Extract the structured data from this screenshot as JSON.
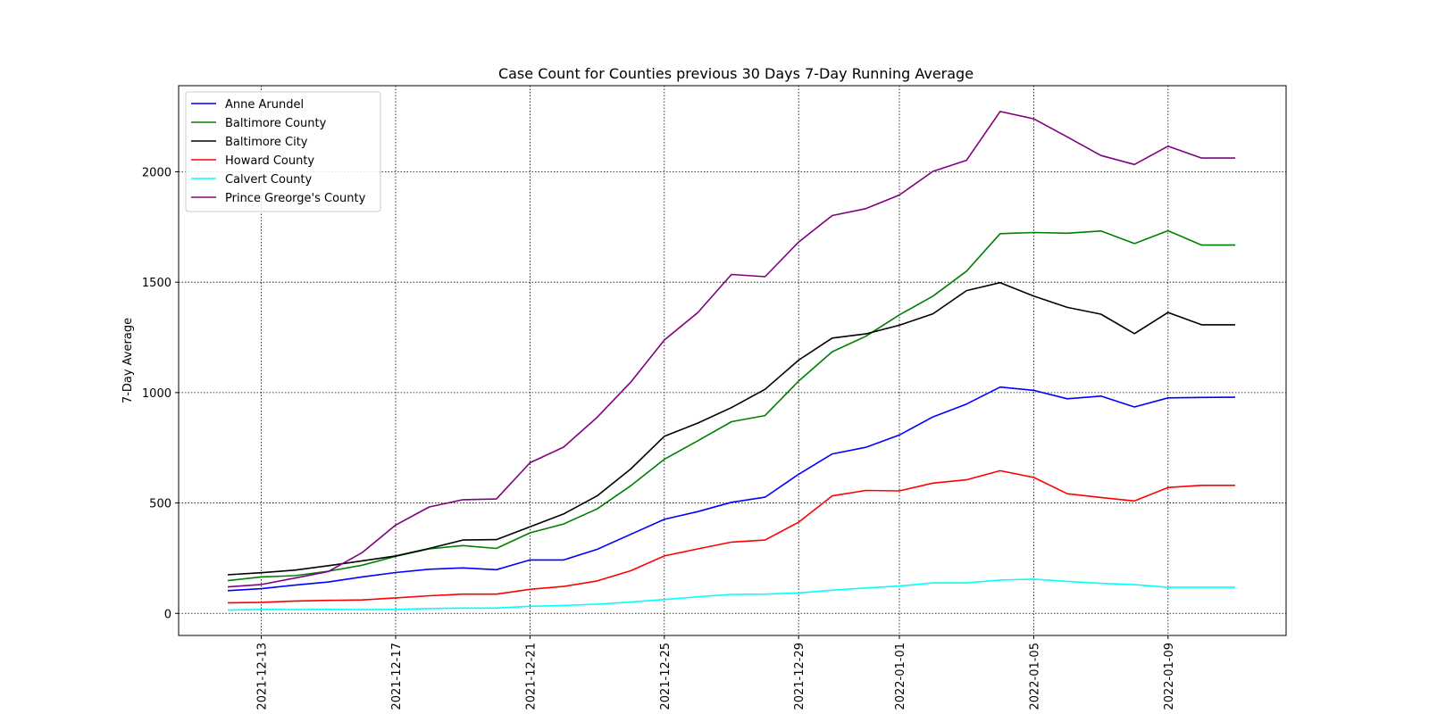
{
  "chart_data": {
    "type": "line",
    "title": "Case Count for Counties previous 30 Days 7-Day Running Average",
    "xlabel": "",
    "ylabel": "7-Day Average",
    "grid": true,
    "legend_position": "top-left",
    "ylim": [
      -100,
      2390
    ],
    "yticks": [
      0,
      500,
      1000,
      1500,
      2000
    ],
    "xtick_labels": [
      "2021-12-13",
      "2021-12-17",
      "2021-12-21",
      "2021-12-25",
      "2021-12-29",
      "2022-01-01",
      "2022-01-05",
      "2022-01-09"
    ],
    "xtick_positions": [
      1,
      5,
      9,
      13,
      17,
      20,
      24,
      28
    ],
    "x": [
      "2021-12-12",
      "2021-12-13",
      "2021-12-14",
      "2021-12-15",
      "2021-12-16",
      "2021-12-17",
      "2021-12-18",
      "2021-12-19",
      "2021-12-20",
      "2021-12-21",
      "2021-12-22",
      "2021-12-23",
      "2021-12-24",
      "2021-12-25",
      "2021-12-26",
      "2021-12-27",
      "2021-12-28",
      "2021-12-29",
      "2021-12-30",
      "2021-12-31",
      "2022-01-01",
      "2022-01-02",
      "2022-01-03",
      "2022-01-04",
      "2022-01-05",
      "2022-01-06",
      "2022-01-07",
      "2022-01-08",
      "2022-01-09",
      "2022-01-10",
      "2022-01-11"
    ],
    "series": [
      {
        "name": "Anne Arundel",
        "color": "#0000ff",
        "values": [
          103,
          112,
          128,
          142,
          165,
          185,
          200,
          206,
          198,
          242,
          242,
          290,
          358,
          426,
          461,
          503,
          526,
          630,
          722,
          752,
          808,
          890,
          948,
          1025,
          1010,
          972,
          984,
          935,
          976,
          978,
          979
        ]
      },
      {
        "name": "Baltimore County",
        "color": "#008000",
        "values": [
          148,
          165,
          171,
          191,
          218,
          258,
          292,
          307,
          294,
          365,
          405,
          473,
          578,
          698,
          782,
          868,
          896,
          1052,
          1185,
          1255,
          1352,
          1437,
          1550,
          1720,
          1725,
          1722,
          1732,
          1675,
          1733,
          1668,
          1668
        ]
      },
      {
        "name": "Baltimore City",
        "color": "#000000",
        "values": [
          175,
          184,
          196,
          216,
          238,
          260,
          294,
          332,
          334,
          392,
          450,
          532,
          654,
          802,
          862,
          932,
          1015,
          1147,
          1247,
          1266,
          1305,
          1357,
          1462,
          1498,
          1437,
          1386,
          1355,
          1267,
          1363,
          1307,
          1307
        ]
      },
      {
        "name": "Howard County",
        "color": "#ff0000",
        "values": [
          48,
          50,
          56,
          59,
          61,
          70,
          80,
          87,
          87,
          109,
          122,
          147,
          193,
          260,
          292,
          323,
          332,
          413,
          532,
          557,
          555,
          590,
          605,
          646,
          616,
          542,
          525,
          509,
          570,
          580,
          580
        ]
      },
      {
        "name": "Calvert County",
        "color": "#00ffff",
        "values": [
          15,
          18,
          17,
          18,
          17,
          18,
          22,
          24,
          24,
          32,
          36,
          42,
          51,
          63,
          75,
          86,
          87,
          93,
          105,
          115,
          124,
          138,
          138,
          151,
          155,
          145,
          136,
          130,
          118,
          118,
          118
        ]
      },
      {
        "name": "Prince Greorge's County",
        "color": "#800080",
        "values": [
          120,
          131,
          160,
          190,
          275,
          400,
          482,
          515,
          518,
          682,
          753,
          888,
          1047,
          1238,
          1363,
          1535,
          1525,
          1682,
          1802,
          1833,
          1895,
          2002,
          2052,
          2273,
          2240,
          2158,
          2074,
          2033,
          2116,
          2062,
          2062
        ]
      }
    ]
  }
}
